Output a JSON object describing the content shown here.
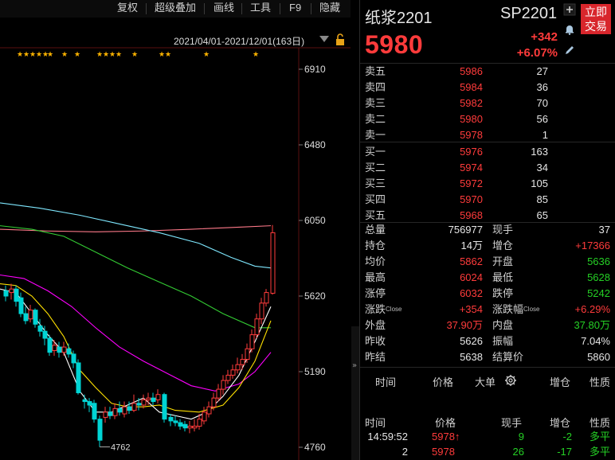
{
  "toolbar": {
    "items": [
      "复权",
      "超级叠加",
      "画线",
      "工具",
      "F9",
      "隐藏"
    ]
  },
  "chart": {
    "date_range": "2021/04/01-2021/12/01(163日)",
    "price_labels": [
      "6910",
      "6480",
      "6050",
      "5620",
      "5190",
      "4760"
    ],
    "low_marker": "4762",
    "star_glyph": "★",
    "colors": {
      "up": "#ff3b3b",
      "down": "#00d4d4",
      "ma_white": "#ffffff",
      "ma_yellow": "#ffe100",
      "ma_magenta": "#ff00ff",
      "ma_green": "#33cc33",
      "ma_cyan": "#7fe8ff",
      "ma_pink": "#ff7a8a"
    }
  },
  "header": {
    "name": "纸浆2201",
    "code": "SP2201",
    "price": "5980",
    "change": "+342",
    "change_pct": "+6.07%",
    "trade_button": [
      "立即",
      "交易"
    ]
  },
  "order_book": {
    "asks": [
      {
        "label": "卖五",
        "price": "5986",
        "vol": "27"
      },
      {
        "label": "卖四",
        "price": "5984",
        "vol": "36"
      },
      {
        "label": "卖三",
        "price": "5982",
        "vol": "70"
      },
      {
        "label": "卖二",
        "price": "5980",
        "vol": "56"
      },
      {
        "label": "卖一",
        "price": "5978",
        "vol": "1"
      }
    ],
    "bids": [
      {
        "label": "买一",
        "price": "5976",
        "vol": "163"
      },
      {
        "label": "买二",
        "price": "5974",
        "vol": "34"
      },
      {
        "label": "买三",
        "price": "5972",
        "vol": "105"
      },
      {
        "label": "买四",
        "price": "5970",
        "vol": "85"
      },
      {
        "label": "买五",
        "price": "5968",
        "vol": "65"
      }
    ]
  },
  "stats": {
    "left": [
      {
        "label": "总量",
        "value": "756977",
        "color": "white"
      },
      {
        "label": "持仓",
        "value": "14万",
        "color": "white"
      },
      {
        "label": "均价",
        "value": "5862",
        "color": "red"
      },
      {
        "label": "最高",
        "value": "6024",
        "color": "red"
      },
      {
        "label": "涨停",
        "value": "6032",
        "color": "red"
      },
      {
        "label": "涨跌",
        "sup": "Close",
        "value": "+354",
        "color": "red"
      },
      {
        "label": "外盘",
        "value": "37.90万",
        "color": "red"
      },
      {
        "label": "昨收",
        "value": "5626",
        "color": "white"
      },
      {
        "label": "昨结",
        "value": "5638",
        "color": "white"
      }
    ],
    "right": [
      {
        "label": "现手",
        "value": "37",
        "color": "white"
      },
      {
        "label": "增仓",
        "value": "+17366",
        "color": "red"
      },
      {
        "label": "开盘",
        "value": "5636",
        "color": "green"
      },
      {
        "label": "最低",
        "value": "5628",
        "color": "green"
      },
      {
        "label": "跌停",
        "value": "5242",
        "color": "green"
      },
      {
        "label": "涨跌幅",
        "sup": "Close",
        "value": "+6.29%",
        "color": "red"
      },
      {
        "label": "内盘",
        "value": "37.80万",
        "color": "green"
      },
      {
        "label": "振幅",
        "value": "7.04%",
        "color": "white"
      },
      {
        "label": "结算价",
        "value": "5860",
        "color": "white"
      }
    ]
  },
  "ticks_header": {
    "columns": [
      "时间",
      "价格",
      "大单",
      "增仓",
      "性质"
    ],
    "settings_icon": "gear-icon"
  },
  "trades": {
    "columns": [
      "时间",
      "价格",
      "现手",
      "增仓",
      "性质"
    ],
    "rows": [
      {
        "time": "14:59:52",
        "price": "5978",
        "arrow": "↑",
        "vol": "9",
        "oi": "-2",
        "type": "多平"
      },
      {
        "time": "2",
        "price": "5978",
        "arrow": "",
        "vol": "26",
        "oi": "-17",
        "type": "多平"
      }
    ]
  }
}
